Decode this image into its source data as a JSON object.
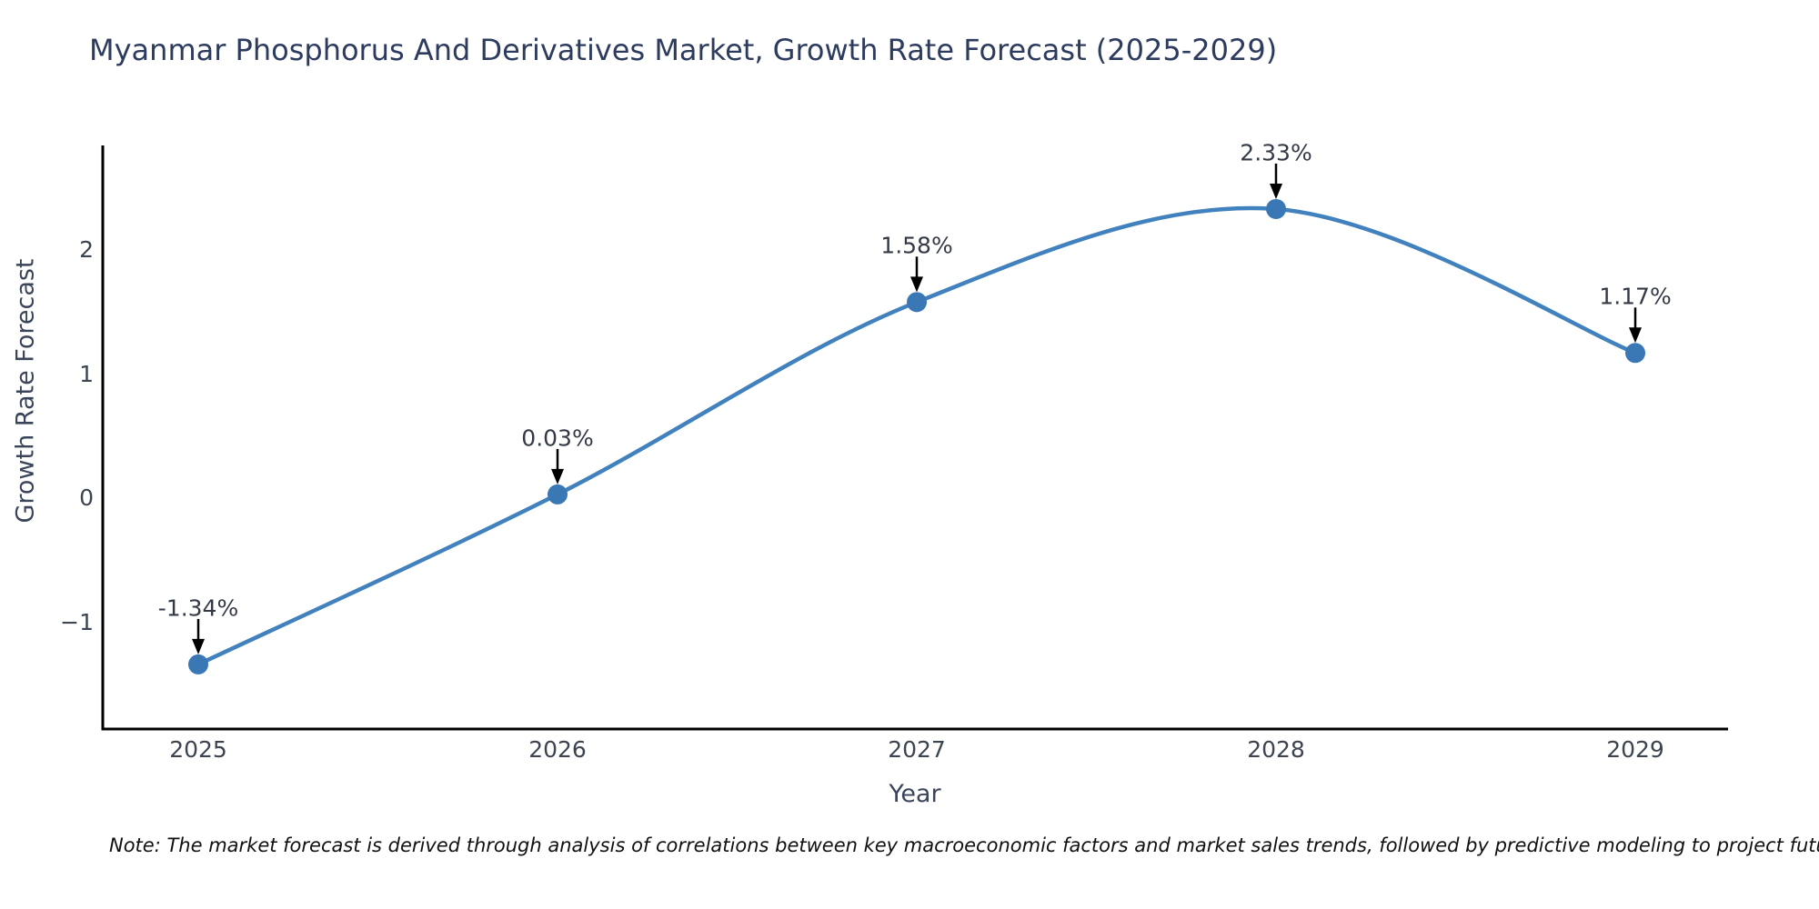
{
  "title": "Myanmar Phosphorus And Derivatives Market, Growth Rate Forecast (2025-2029)",
  "note": "Note: The market forecast is derived through analysis of correlations between key macroeconomic factors and market sales trends, followed by predictive modeling to project future sales",
  "chart_data": {
    "type": "line",
    "title": "Myanmar Phosphorus And Derivatives Market, Growth Rate Forecast (2025-2029)",
    "x": [
      2025,
      2026,
      2027,
      2028,
      2029
    ],
    "categories": [
      "2025",
      "2026",
      "2027",
      "2028",
      "2029"
    ],
    "values": [
      -1.34,
      0.03,
      1.58,
      2.33,
      1.17
    ],
    "labels": [
      "-1.34%",
      "0.03%",
      "1.58%",
      "2.33%",
      "1.17%"
    ],
    "xlabel": "Year",
    "ylabel": "Growth Rate Forecast",
    "y_ticks": [
      2,
      1,
      0,
      -1
    ],
    "y_tick_labels": [
      "2",
      "1",
      "0",
      "−1"
    ],
    "ylim": [
      -1.86,
      2.84
    ],
    "grid": false,
    "legend": "none",
    "line_style": "smooth-spline",
    "marker": "circle",
    "annotation_arrows": true,
    "colors": {
      "line": "#4181bd",
      "marker": "#3a78b5",
      "axis": "#000000",
      "arrow": "#000000",
      "title": "#2d3b5e",
      "tick": "#3c4450",
      "annotation": "#333a45"
    }
  }
}
